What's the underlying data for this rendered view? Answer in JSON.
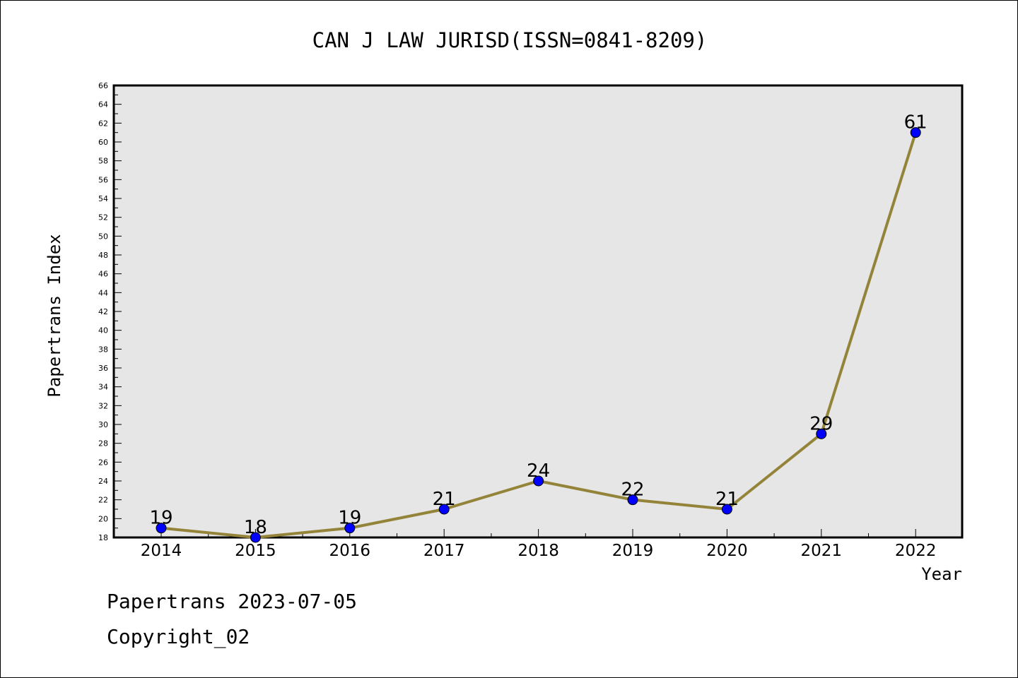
{
  "chart_data": {
    "type": "line",
    "title": "CAN J LAW JURISD(ISSN=0841-8209)",
    "xlabel": "Year",
    "ylabel": "Papertrans Index",
    "categories": [
      "2014",
      "2015",
      "2016",
      "2017",
      "2018",
      "2019",
      "2020",
      "2021",
      "2022"
    ],
    "values": [
      19,
      18,
      19,
      21,
      24,
      22,
      21,
      29,
      61
    ],
    "data_labels": [
      "19",
      "18",
      "19",
      "21",
      "24",
      "22",
      "21",
      "29",
      "61"
    ],
    "ylim": [
      18,
      66
    ],
    "yticks": [
      18,
      20,
      22,
      24,
      26,
      28,
      30,
      32,
      34,
      36,
      38,
      40,
      42,
      44,
      46,
      48,
      50,
      52,
      54,
      56,
      58,
      60,
      62,
      64,
      66
    ],
    "grid": false,
    "colors": {
      "line": "#948439",
      "marker": "#0000ff",
      "plot_background": "#e6e6e6"
    }
  },
  "footer": {
    "date_text": "Papertrans 2023-07-05",
    "copyright_text": "Copyright_02"
  }
}
